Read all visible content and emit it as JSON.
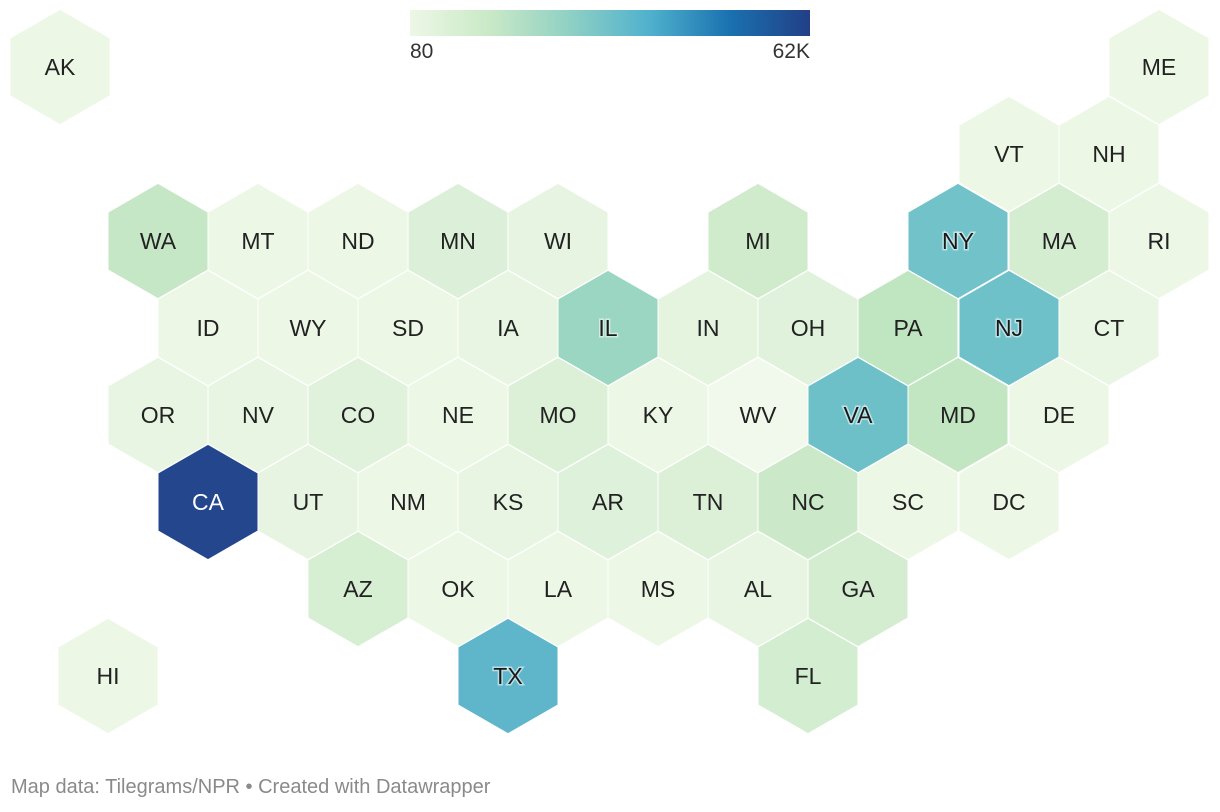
{
  "legend": {
    "min_label": "80",
    "max_label": "62K",
    "min_value": 80,
    "max_value": 62000,
    "color_stops": [
      "#edf7e6",
      "#c9e9c6",
      "#8fd0c4",
      "#4fb1cd",
      "#1a71b0",
      "#223f87"
    ]
  },
  "footer": {
    "source_label": "Map data: ",
    "source_text": "Tilegrams/NPR",
    "separator": " • ",
    "credit_text": "Created with Datawrapper"
  },
  "chart_data": {
    "type": "heatmap",
    "map_type": "hexagon tile map",
    "tiles": [
      {
        "id": "AK",
        "label": "AK",
        "color": "#edf7e6"
      },
      {
        "id": "ME",
        "label": "ME",
        "color": "#edf7e6"
      },
      {
        "id": "VT",
        "label": "VT",
        "color": "#edf7e6"
      },
      {
        "id": "NH",
        "label": "NH",
        "color": "#edf7e6"
      },
      {
        "id": "WA",
        "label": "WA",
        "color": "#c6e7c5"
      },
      {
        "id": "MT",
        "label": "MT",
        "color": "#edf7e6"
      },
      {
        "id": "ND",
        "label": "ND",
        "color": "#edf7e6"
      },
      {
        "id": "MN",
        "label": "MN",
        "color": "#dcf0d9"
      },
      {
        "id": "WI",
        "label": "WI",
        "color": "#e6f4e1"
      },
      {
        "id": "MI",
        "label": "MI",
        "color": "#cfebcb"
      },
      {
        "id": "NY",
        "label": "NY",
        "color": "#71c2c9"
      },
      {
        "id": "MA",
        "label": "MA",
        "color": "#d4edd0"
      },
      {
        "id": "RI",
        "label": "RI",
        "color": "#edf7e6"
      },
      {
        "id": "ID",
        "label": "ID",
        "color": "#edf7e6"
      },
      {
        "id": "WY",
        "label": "WY",
        "color": "#edf7e6"
      },
      {
        "id": "SD",
        "label": "SD",
        "color": "#edf7e6"
      },
      {
        "id": "IA",
        "label": "IA",
        "color": "#e8f5e3"
      },
      {
        "id": "IL",
        "label": "IL",
        "color": "#9ad6c2"
      },
      {
        "id": "IN",
        "label": "IN",
        "color": "#e4f4df"
      },
      {
        "id": "OH",
        "label": "OH",
        "color": "#e0f2dc"
      },
      {
        "id": "PA",
        "label": "PA",
        "color": "#c0e5c1"
      },
      {
        "id": "NJ",
        "label": "NJ",
        "color": "#6fc1c9"
      },
      {
        "id": "CT",
        "label": "CT",
        "color": "#e9f6e4"
      },
      {
        "id": "OR",
        "label": "OR",
        "color": "#e8f5e3"
      },
      {
        "id": "NV",
        "label": "NV",
        "color": "#e8f5e3"
      },
      {
        "id": "CO",
        "label": "CO",
        "color": "#e0f2dc"
      },
      {
        "id": "NE",
        "label": "NE",
        "color": "#edf7e6"
      },
      {
        "id": "MO",
        "label": "MO",
        "color": "#dbf0d7"
      },
      {
        "id": "KY",
        "label": "KY",
        "color": "#edf7e6"
      },
      {
        "id": "WV",
        "label": "WV",
        "color": "#f1f9ec"
      },
      {
        "id": "VA",
        "label": "VA",
        "color": "#6ec0c8"
      },
      {
        "id": "MD",
        "label": "MD",
        "color": "#c2e6c2"
      },
      {
        "id": "DE",
        "label": "DE",
        "color": "#edf7e6"
      },
      {
        "id": "CA",
        "label": "CA",
        "color": "#23468d"
      },
      {
        "id": "UT",
        "label": "UT",
        "color": "#e6f4e1"
      },
      {
        "id": "NM",
        "label": "NM",
        "color": "#edf7e6"
      },
      {
        "id": "KS",
        "label": "KS",
        "color": "#e8f5e3"
      },
      {
        "id": "AR",
        "label": "AR",
        "color": "#def1da"
      },
      {
        "id": "TN",
        "label": "TN",
        "color": "#dcf0d8"
      },
      {
        "id": "NC",
        "label": "NC",
        "color": "#cbe9c8"
      },
      {
        "id": "SC",
        "label": "SC",
        "color": "#edf7e6"
      },
      {
        "id": "DC",
        "label": "DC",
        "color": "#edf7e6"
      },
      {
        "id": "AZ",
        "label": "AZ",
        "color": "#d6eed2"
      },
      {
        "id": "OK",
        "label": "OK",
        "color": "#edf7e6"
      },
      {
        "id": "LA",
        "label": "LA",
        "color": "#edf7e6"
      },
      {
        "id": "MS",
        "label": "MS",
        "color": "#edf7e6"
      },
      {
        "id": "AL",
        "label": "AL",
        "color": "#e8f5e3"
      },
      {
        "id": "GA",
        "label": "GA",
        "color": "#d4edd0"
      },
      {
        "id": "HI",
        "label": "HI",
        "color": "#edf7e6"
      },
      {
        "id": "TX",
        "label": "TX",
        "color": "#5fb5ca"
      },
      {
        "id": "FL",
        "label": "FL",
        "color": "#d2edcf"
      }
    ]
  }
}
